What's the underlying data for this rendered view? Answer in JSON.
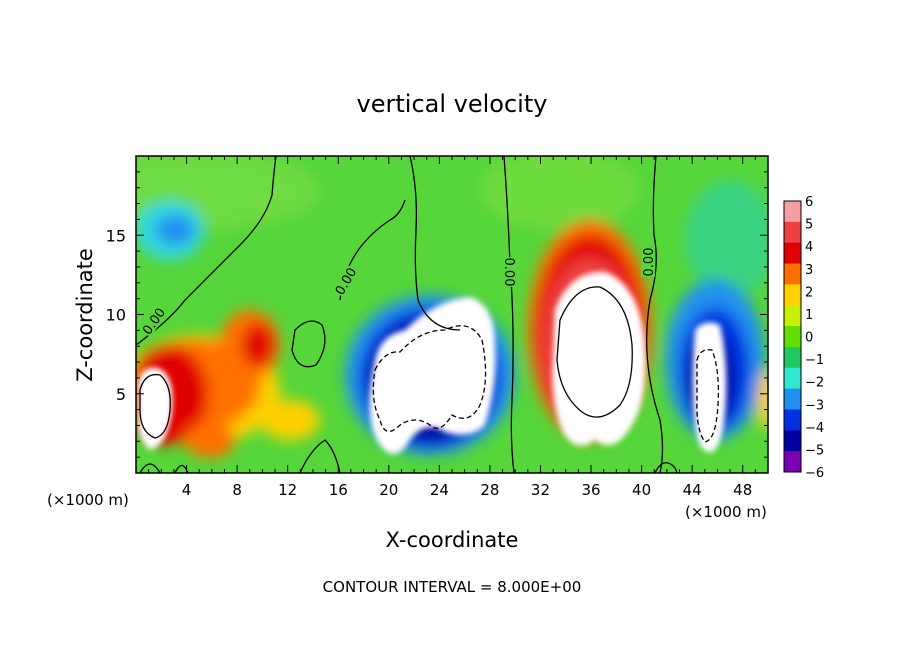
{
  "chart_data": {
    "type": "heatmap",
    "title": "vertical velocity",
    "xlabel": "X-coordinate",
    "ylabel": "Z-coordinate",
    "x_unit_label": "(×1000 m)",
    "x_ticks": [
      4,
      8,
      12,
      16,
      20,
      24,
      28,
      32,
      36,
      40,
      44,
      48
    ],
    "y_ticks": [
      5,
      10,
      15
    ],
    "xlim": [
      0,
      50
    ],
    "ylim": [
      0,
      20
    ],
    "contour_label": "0.00",
    "footer": "CONTOUR INTERVAL = 8.000E+00",
    "colorbar": {
      "min": -6,
      "max": 6,
      "labels": [
        "6",
        "5",
        "4",
        "3",
        "2",
        "1",
        "0",
        "−1",
        "−2",
        "−3",
        "−4",
        "−5",
        "−6"
      ],
      "colors": [
        "#f5a0a0",
        "#ee4040",
        "#e00000",
        "#ff7000",
        "#ffd000",
        "#c8f000",
        "#60e000",
        "#20c860",
        "#30e8d0",
        "#2090f0",
        "#0030e0",
        "#0000a0",
        "#7a00b0"
      ]
    },
    "features": [
      {
        "type": "updraft",
        "x": 3,
        "z": 4.6,
        "peak": "> 6"
      },
      {
        "type": "updraft",
        "x": 10,
        "z": 8,
        "peak": "5"
      },
      {
        "type": "updraft",
        "x": 35,
        "z": 8,
        "peak": "> 6"
      },
      {
        "type": "downdraft",
        "x": 23.5,
        "z": 6,
        "peak": "< -6"
      },
      {
        "type": "downdraft",
        "x": 45.7,
        "z": 5,
        "peak": "< -6"
      },
      {
        "type": "weak-downdraft",
        "x": 3,
        "z": 14.5,
        "peak": "-3"
      }
    ]
  }
}
